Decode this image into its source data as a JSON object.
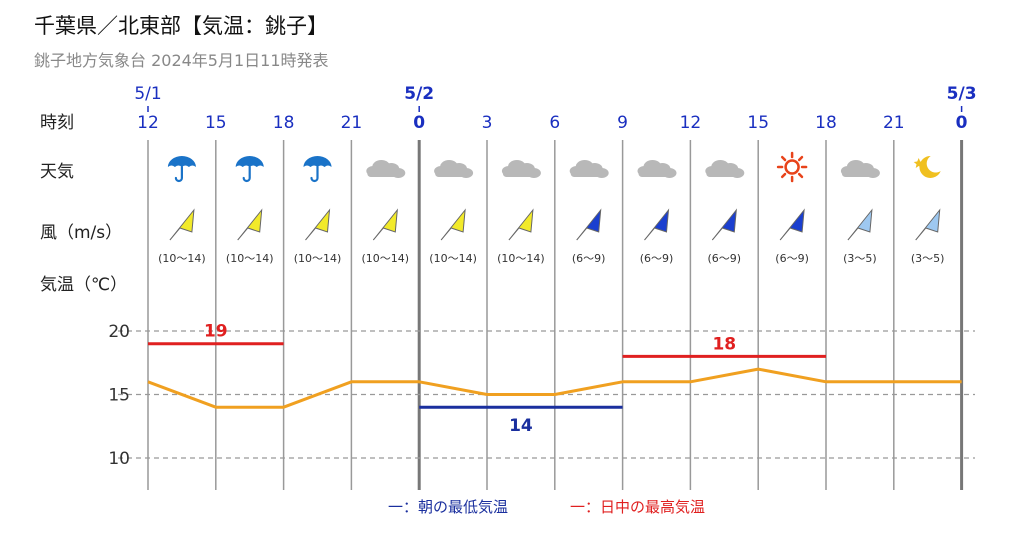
{
  "header": {
    "title": "千葉県／北東部【気温：銚子】",
    "subtitle": "銚子地方気象台 2024年5月1日11時発表"
  },
  "row_labels": {
    "time": "時刻",
    "weather": "天気",
    "wind": "風（m/s）",
    "temp": "気温（℃）"
  },
  "dates": [
    {
      "label": "5/1",
      "col": 0,
      "bold": false
    },
    {
      "label": "5/2",
      "col": 4,
      "bold": true
    },
    {
      "label": "5/3",
      "col": 12,
      "bold": true
    }
  ],
  "times": [
    "12",
    "15",
    "18",
    "21",
    "0",
    "3",
    "6",
    "9",
    "12",
    "15",
    "18",
    "21",
    "0"
  ],
  "weather": [
    "rain-umbrella-icon",
    "rain-umbrella-icon",
    "rain-umbrella-icon",
    "cloud-icon",
    "cloud-icon",
    "cloud-icon",
    "cloud-icon",
    "cloud-icon",
    "cloud-icon",
    "sun-icon",
    "cloud-icon",
    "moon-star-icon"
  ],
  "wind": {
    "speeds": [
      "(10～14)",
      "(10～14)",
      "(10～14)",
      "(10～14)",
      "(10～14)",
      "(10～14)",
      "(6～9)",
      "(6～9)",
      "(6～9)",
      "(6～9)",
      "(3～5)",
      "(3～5)"
    ],
    "levels": [
      "yellow",
      "yellow",
      "yellow",
      "yellow",
      "yellow",
      "yellow",
      "blue",
      "blue",
      "blue",
      "blue",
      "lightblue",
      "lightblue"
    ],
    "colors": {
      "yellow": "#f2ea2a",
      "blue": "#1b3fcf",
      "lightblue": "#9ec8f0"
    }
  },
  "legend": {
    "min_label": "一：朝の最低気温",
    "max_label": "一：日中の最高気温"
  },
  "colors": {
    "temp_line": "#f0a020",
    "min_line": "#1a2f9e",
    "max_line": "#e02020",
    "date_color": "#1a2fc0",
    "grid": "#888888",
    "rain_icon": "#1a73c8",
    "sun_icon": "#e8431a",
    "moon_icon": "#f0c020",
    "cloud_icon": "#b8b8b8"
  },
  "chart_data": {
    "type": "line",
    "x": [
      "5/1 12",
      "5/1 15",
      "5/1 18",
      "5/1 21",
      "5/2 0",
      "5/2 3",
      "5/2 6",
      "5/2 9",
      "5/2 12",
      "5/2 15",
      "5/2 18",
      "5/2 21",
      "5/3 0"
    ],
    "series": [
      {
        "values": [
          16,
          14,
          14,
          16,
          16,
          15,
          15,
          16,
          16,
          17,
          16,
          16,
          16
        ]
      }
    ],
    "extremes": [
      {
        "label": "19",
        "value": 19,
        "from": 0,
        "to": 2,
        "kind": "max"
      },
      {
        "label": "14",
        "value": 14,
        "from": 4,
        "to": 7,
        "kind": "min"
      },
      {
        "label": "18",
        "value": 18,
        "from": 7,
        "to": 10,
        "kind": "max"
      }
    ],
    "yticks": [
      20,
      15,
      10
    ],
    "ylim": [
      7.5,
      22
    ],
    "grid": true
  }
}
